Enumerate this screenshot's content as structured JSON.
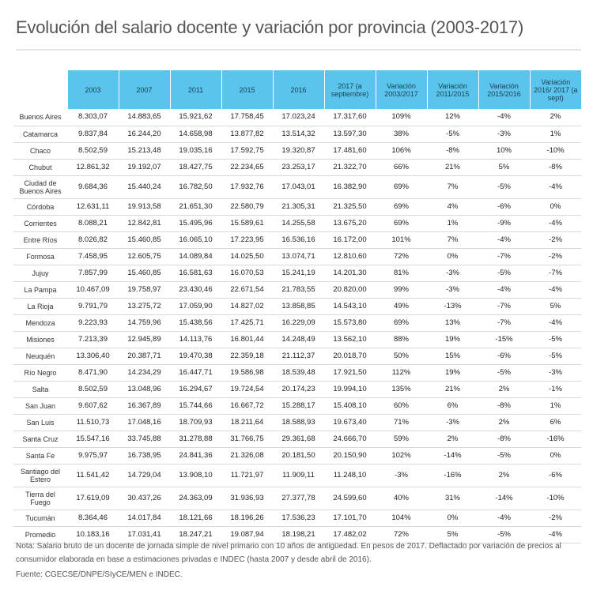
{
  "title": "Evolución del salario docente y variación por provincia (2003-2017)",
  "accent_color": "#5bc4ec",
  "chart_data": {
    "type": "table",
    "title": "Evolución del salario docente y variación por provincia (2003-2017)",
    "columns": [
      "2003",
      "2007",
      "2011",
      "2015",
      "2016",
      "2017 (a septiembre)",
      "Variación 2003/2017",
      "Variación 2011/2015",
      "Variación 2015/2016",
      "Variación 2016/ 2017 (a sept)"
    ],
    "rows": [
      {
        "prov": "Buenos Aires",
        "cells": [
          "8.303,07",
          "14.883,65",
          "15.921,62",
          "17.758,45",
          "17.023,24",
          "17.317,60",
          "109%",
          "12%",
          "-4%",
          "2%"
        ]
      },
      {
        "prov": "Catamarca",
        "cells": [
          "9.837,84",
          "16.244,20",
          "14.658,98",
          "13.877,82",
          "13.514,32",
          "13.597,30",
          "38%",
          "-5%",
          "-3%",
          "1%"
        ]
      },
      {
        "prov": "Chaco",
        "cells": [
          "8.502,59",
          "15.213,48",
          "19.035,16",
          "17.592,75",
          "19.320,87",
          "17.481,60",
          "106%",
          "-8%",
          "10%",
          "-10%"
        ]
      },
      {
        "prov": "Chubut",
        "cells": [
          "12.861,32",
          "19.192,07",
          "18.427,75",
          "22.234,65",
          "23.253,17",
          "21.322,70",
          "66%",
          "21%",
          "5%",
          "-8%"
        ]
      },
      {
        "prov": "Ciudad de Buenos Aires",
        "cells": [
          "9.684,36",
          "15.440,24",
          "16.782,50",
          "17.932,76",
          "17.043,01",
          "16.382,90",
          "69%",
          "7%",
          "-5%",
          "-4%"
        ]
      },
      {
        "prov": "Córdoba",
        "cells": [
          "12.631,11",
          "19.913,58",
          "21.651,30",
          "22.580,79",
          "21.305,31",
          "21.325,50",
          "69%",
          "4%",
          "-6%",
          "0%"
        ]
      },
      {
        "prov": "Corrientes",
        "cells": [
          "8.088,21",
          "12.842,81",
          "15.495,96",
          "15.589,61",
          "14.255,58",
          "13.675,20",
          "69%",
          "1%",
          "-9%",
          "-4%"
        ]
      },
      {
        "prov": "Entre Ríos",
        "cells": [
          "8.026,82",
          "15.460,85",
          "16.065,10",
          "17.223,95",
          "16.536,16",
          "16.172,00",
          "101%",
          "7%",
          "-4%",
          "-2%"
        ]
      },
      {
        "prov": "Formosa",
        "cells": [
          "7.458,95",
          "12.605,75",
          "14.089,84",
          "14.025,50",
          "13.074,71",
          "12.810,60",
          "72%",
          "0%",
          "-7%",
          "-2%"
        ]
      },
      {
        "prov": "Jujuy",
        "cells": [
          "7.857,99",
          "15.460,85",
          "16.581,63",
          "16.070,53",
          "15.241,19",
          "14.201,30",
          "81%",
          "-3%",
          "-5%",
          "-7%"
        ]
      },
      {
        "prov": "La Pampa",
        "cells": [
          "10.467,09",
          "19.758,97",
          "23.430,46",
          "22.671,54",
          "21.783,55",
          "20.820,00",
          "99%",
          "-3%",
          "-4%",
          "-4%"
        ]
      },
      {
        "prov": "La Rioja",
        "cells": [
          "9.791,79",
          "13.275,72",
          "17.059,90",
          "14.827,02",
          "13.858,85",
          "14.543,10",
          "49%",
          "-13%",
          "-7%",
          "5%"
        ]
      },
      {
        "prov": "Mendoza",
        "cells": [
          "9.223,93",
          "14.759,96",
          "15.438,56",
          "17.425,71",
          "16.229,09",
          "15.573,80",
          "69%",
          "13%",
          "-7%",
          "-4%"
        ]
      },
      {
        "prov": "Misiones",
        "cells": [
          "7.213,39",
          "12.945,89",
          "14.113,76",
          "16.801,44",
          "14.248,49",
          "13.562,10",
          "88%",
          "19%",
          "-15%",
          "-5%"
        ]
      },
      {
        "prov": "Neuquén",
        "cells": [
          "13.306,40",
          "20.387,71",
          "19.470,38",
          "22.359,18",
          "21.112,37",
          "20.018,70",
          "50%",
          "15%",
          "-6%",
          "-5%"
        ]
      },
      {
        "prov": "Río Negro",
        "cells": [
          "8.471,90",
          "14.234,29",
          "16.447,71",
          "19.586,98",
          "18.539,48",
          "17.921,50",
          "112%",
          "19%",
          "-5%",
          "-3%"
        ]
      },
      {
        "prov": "Salta",
        "cells": [
          "8.502,59",
          "13.048,96",
          "16.294,67",
          "19.724,54",
          "20.174,23",
          "19.994,10",
          "135%",
          "21%",
          "2%",
          "-1%"
        ]
      },
      {
        "prov": "San Juan",
        "cells": [
          "9.607,62",
          "16.367,89",
          "15.744,66",
          "16.667,72",
          "15.288,17",
          "15.408,10",
          "60%",
          "6%",
          "-8%",
          "1%"
        ]
      },
      {
        "prov": "San Luis",
        "cells": [
          "11.510,73",
          "17.048,16",
          "18.709,93",
          "18.211,64",
          "18.588,93",
          "19.673,40",
          "71%",
          "-3%",
          "2%",
          "6%"
        ]
      },
      {
        "prov": "Santa Cruz",
        "cells": [
          "15.547,16",
          "33.745,88",
          "31.278,88",
          "31.766,75",
          "29.361,68",
          "24.666,70",
          "59%",
          "2%",
          "-8%",
          "-16%"
        ]
      },
      {
        "prov": "Santa Fe",
        "cells": [
          "9.975,97",
          "16.738,95",
          "24.841,36",
          "21.326,08",
          "20.181,50",
          "20.150,90",
          "102%",
          "-14%",
          "-5%",
          "0%"
        ]
      },
      {
        "prov": "Santiago del Estero",
        "cells": [
          "11.541,42",
          "14.729,04",
          "13.908,10",
          "11.721,97",
          "11.909,11",
          "11.248,10",
          "-3%",
          "-16%",
          "2%",
          "-6%"
        ]
      },
      {
        "prov": "Tierra del Fuego",
        "cells": [
          "17.619,09",
          "30.437,26",
          "24.363,09",
          "31.936,93",
          "27.377,78",
          "24.599,60",
          "40%",
          "31%",
          "-14%",
          "-10%"
        ]
      },
      {
        "prov": "Tucumán",
        "cells": [
          "8.364,46",
          "14.017,84",
          "18.121,66",
          "18.196,26",
          "17.536,23",
          "17.101,70",
          "104%",
          "0%",
          "-4%",
          "-2%"
        ]
      },
      {
        "prov": "Promedio",
        "cells": [
          "10.183,16",
          "17.031,41",
          "18.247,21",
          "19.087,94",
          "18.198,21",
          "17.482,02",
          "72%",
          "5%",
          "-5%",
          "-4%"
        ]
      }
    ]
  },
  "note": "Nota: Salario bruto de un docente de jornada simple de nivel primario con 10 años de antigüedad. En pesos de 2017. Deflactado por variación de precios al consumidor elaborada en base a estimaciones privadas e INDEC (hasta 2007 y desde abril de 2016).",
  "source": "Fuente: CGECSE/DNPE/SIyCE/MEN e INDEC."
}
